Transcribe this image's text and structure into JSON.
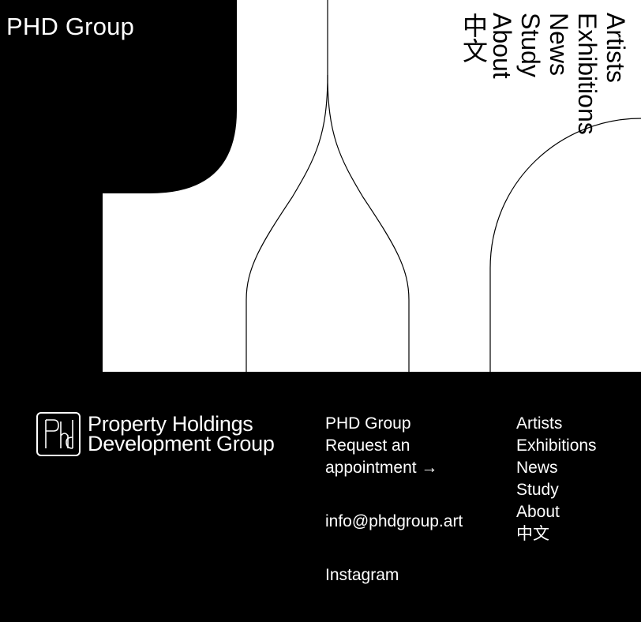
{
  "site": {
    "title": "PHD Group"
  },
  "nav": {
    "items": [
      {
        "id": "artists",
        "label": "Artists"
      },
      {
        "id": "exhibitions",
        "label": "Exhibitions"
      },
      {
        "id": "news",
        "label": "News"
      },
      {
        "id": "study",
        "label": "Study"
      },
      {
        "id": "about",
        "label": "About"
      },
      {
        "id": "chinese",
        "label": "中文"
      }
    ]
  },
  "footer": {
    "logo": {
      "line1": "Property Holdings",
      "line2": "Development Group",
      "mark": "PHD"
    },
    "contact": {
      "name": "PHD Group",
      "appointment": "Request an appointment →",
      "email": "info@phdgroup.art",
      "instagram": "Instagram"
    },
    "nav": [
      "Artists",
      "Exhibitions",
      "News",
      "Study",
      "About",
      "中文"
    ]
  },
  "colors": {
    "background": "#000000",
    "foreground": "#ffffff"
  },
  "icons": {
    "logo": "phd-monogram-icon"
  }
}
